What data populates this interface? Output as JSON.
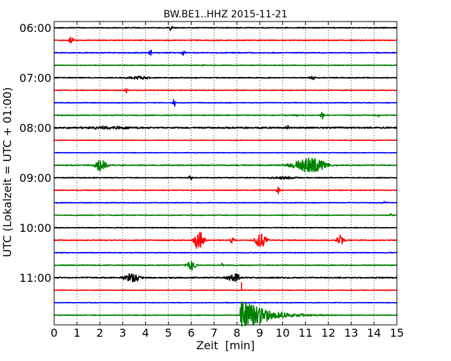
{
  "chart_data": {
    "type": "line",
    "title": "BW.BE1..HHZ 2015-11-21",
    "xlabel": "Zeit  [min]",
    "ylabel": "UTC (Lokalzeit = UTC + 01:00)",
    "xlim": [
      0,
      15
    ],
    "x_ticks": [
      0,
      1,
      2,
      3,
      4,
      5,
      6,
      7,
      8,
      9,
      10,
      11,
      12,
      13,
      14,
      15
    ],
    "y_tick_labels": [
      {
        "row": 0,
        "label": "06:00"
      },
      {
        "row": 4,
        "label": "07:00"
      },
      {
        "row": 8,
        "label": "08:00"
      },
      {
        "row": 12,
        "label": "09:00"
      },
      {
        "row": 16,
        "label": "10:00"
      },
      {
        "row": 20,
        "label": "11:00"
      }
    ],
    "row_minutes": 15,
    "grid": "vertical dotted",
    "trace_colors": [
      "#000000",
      "#ff0000",
      "#0000ff",
      "#008000"
    ],
    "traces": [
      {
        "row": 0,
        "noise": 0.6,
        "events": [
          {
            "t": 5.1,
            "amp": 4,
            "dur": 0.08
          }
        ]
      },
      {
        "row": 1,
        "noise": 0.6,
        "events": [
          {
            "t": 0.75,
            "amp": 5,
            "dur": 0.1
          }
        ]
      },
      {
        "row": 2,
        "noise": 0.6,
        "events": [
          {
            "t": 4.2,
            "amp": 6,
            "dur": 0.08
          },
          {
            "t": 5.65,
            "amp": 4,
            "dur": 0.06
          }
        ]
      },
      {
        "row": 3,
        "noise": 0.5,
        "events": [
          {
            "t": 6.5,
            "amp": 2,
            "dur": 0.05
          }
        ]
      },
      {
        "row": 4,
        "noise": 0.6,
        "events": [
          {
            "t": 3.7,
            "amp": 2,
            "dur": 0.5
          },
          {
            "t": 11.3,
            "amp": 3,
            "dur": 0.15
          }
        ]
      },
      {
        "row": 5,
        "noise": 0.5,
        "events": [
          {
            "t": 3.15,
            "amp": 4,
            "dur": 0.06
          }
        ]
      },
      {
        "row": 6,
        "noise": 0.5,
        "events": [
          {
            "t": 5.25,
            "amp": 6,
            "dur": 0.07
          }
        ]
      },
      {
        "row": 7,
        "noise": 0.6,
        "events": [
          {
            "t": 10.6,
            "amp": 2,
            "dur": 0.1
          },
          {
            "t": 11.75,
            "amp": 5,
            "dur": 0.1
          },
          {
            "t": 14.25,
            "amp": 3,
            "dur": 0.08
          }
        ]
      },
      {
        "row": 8,
        "noise": 1.0,
        "events": [
          {
            "t": 2.5,
            "amp": 2,
            "dur": 1.2
          },
          {
            "t": 10.2,
            "amp": 3,
            "dur": 0.1
          }
        ]
      },
      {
        "row": 9,
        "noise": 0.4,
        "events": []
      },
      {
        "row": 10,
        "noise": 0.4,
        "events": []
      },
      {
        "row": 11,
        "noise": 0.7,
        "events": [
          {
            "t": 2.05,
            "amp": 9,
            "dur": 0.25
          },
          {
            "t": 11.2,
            "amp": 11,
            "dur": 0.7
          }
        ]
      },
      {
        "row": 12,
        "noise": 0.6,
        "events": [
          {
            "t": 5.95,
            "amp": 4,
            "dur": 0.08
          },
          {
            "t": 10.0,
            "amp": 2,
            "dur": 0.6
          }
        ]
      },
      {
        "row": 13,
        "noise": 0.5,
        "events": [
          {
            "t": 9.8,
            "amp": 5,
            "dur": 0.08
          }
        ]
      },
      {
        "row": 14,
        "noise": 0.5,
        "events": [
          {
            "t": 14.45,
            "amp": 2,
            "dur": 0.08
          }
        ]
      },
      {
        "row": 15,
        "noise": 0.5,
        "events": [
          {
            "t": 14.75,
            "amp": 2,
            "dur": 0.06
          }
        ]
      },
      {
        "row": 16,
        "noise": 0.5,
        "events": []
      },
      {
        "row": 17,
        "noise": 0.6,
        "events": [
          {
            "t": 6.35,
            "amp": 17,
            "dur": 0.2
          },
          {
            "t": 7.8,
            "amp": 5,
            "dur": 0.1
          },
          {
            "t": 9.05,
            "amp": 11,
            "dur": 0.25
          },
          {
            "t": 12.5,
            "amp": 8,
            "dur": 0.15
          }
        ]
      },
      {
        "row": 18,
        "noise": 0.5,
        "events": []
      },
      {
        "row": 19,
        "noise": 0.6,
        "events": [
          {
            "t": 6.0,
            "amp": 7,
            "dur": 0.2
          },
          {
            "t": 7.35,
            "amp": 3,
            "dur": 0.05
          }
        ]
      },
      {
        "row": 20,
        "noise": 0.8,
        "events": [
          {
            "t": 3.4,
            "amp": 7,
            "dur": 0.35
          },
          {
            "t": 7.9,
            "amp": 6,
            "dur": 0.3
          }
        ]
      },
      {
        "row": 21,
        "noise": 0.4,
        "events": [],
        "spike": {
          "t": 8.2,
          "amp": 11
        }
      },
      {
        "row": 22,
        "noise": 0.4,
        "events": []
      },
      {
        "row": 23,
        "noise": 0.5,
        "events": [],
        "quake": {
          "t": 8.15,
          "amp": 26,
          "decay": 1.0
        }
      }
    ]
  }
}
